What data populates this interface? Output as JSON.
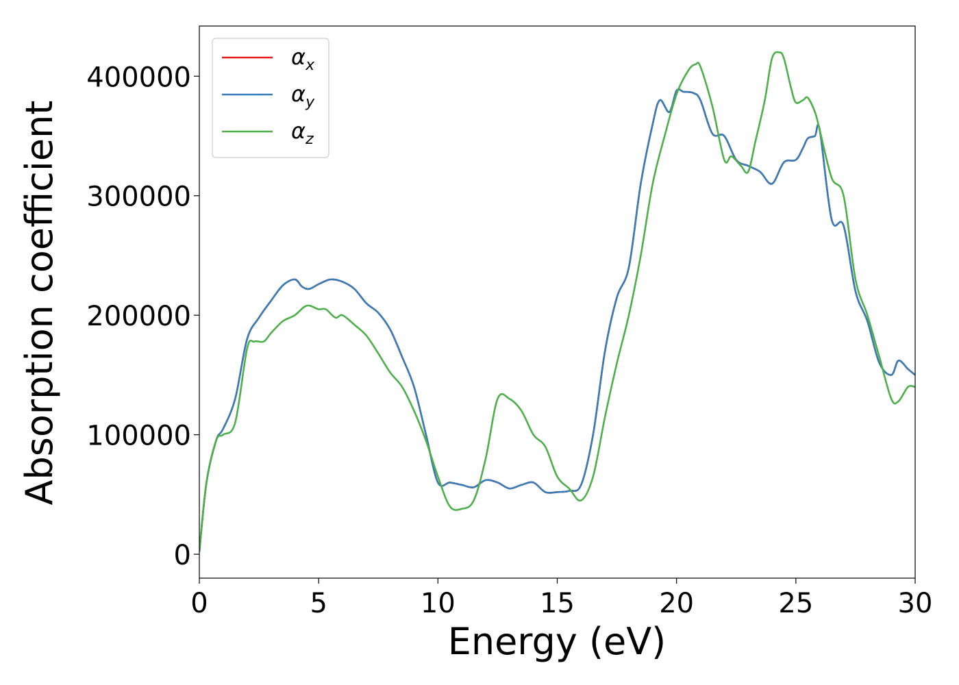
{
  "chart_data": {
    "type": "line",
    "xlabel": "Energy (eV)",
    "ylabel": "Absorption coefficient",
    "xlim": [
      0,
      30
    ],
    "ylim": [
      -20000,
      442000
    ],
    "xticks": [
      0,
      5,
      10,
      15,
      20,
      25,
      30
    ],
    "yticks": [
      0,
      100000,
      200000,
      300000,
      400000
    ],
    "grid": false,
    "legend_position": "top-left",
    "series": [
      {
        "name": "α_x",
        "symbol": "α",
        "subscript": "x",
        "color": "#e41a1c",
        "x": [
          0,
          0.3,
          0.7,
          1.0,
          1.5,
          2.0,
          2.5,
          3.0,
          3.5,
          4.0,
          4.3,
          4.6,
          5.0,
          5.5,
          6.0,
          6.5,
          7.0,
          7.5,
          8.0,
          8.5,
          9.0,
          9.5,
          10.0,
          10.5,
          11.0,
          11.5,
          12.0,
          12.5,
          13.0,
          13.5,
          14.0,
          14.5,
          15.0,
          15.5,
          16.0,
          16.5,
          17.0,
          17.5,
          18.0,
          18.5,
          19.0,
          19.3,
          19.7,
          20.0,
          20.3,
          20.7,
          21.0,
          21.5,
          22.0,
          22.5,
          23.0,
          23.5,
          24.0,
          24.5,
          25.0,
          25.3,
          25.5,
          25.8,
          26.0,
          26.5,
          27.0,
          27.5,
          28.0,
          28.5,
          29.0,
          29.3,
          29.7,
          30.0
        ],
        "y": [
          2000,
          60000,
          95000,
          105000,
          130000,
          180000,
          198000,
          212000,
          225000,
          230000,
          224000,
          222000,
          226000,
          230000,
          228000,
          222000,
          210000,
          202000,
          188000,
          165000,
          140000,
          100000,
          60000,
          60000,
          58000,
          56000,
          62000,
          60000,
          55000,
          58000,
          60000,
          52000,
          52000,
          53000,
          58000,
          100000,
          170000,
          215000,
          240000,
          310000,
          360000,
          380000,
          370000,
          388000,
          387000,
          386000,
          380000,
          352000,
          350000,
          330000,
          325000,
          320000,
          310000,
          328000,
          330000,
          340000,
          348000,
          350000,
          355000,
          280000,
          275000,
          220000,
          195000,
          160000,
          150000,
          162000,
          155000,
          150000
        ]
      },
      {
        "name": "α_y",
        "symbol": "α",
        "subscript": "y",
        "color": "#377eb8",
        "x": [
          0,
          0.3,
          0.7,
          1.0,
          1.5,
          2.0,
          2.5,
          3.0,
          3.5,
          4.0,
          4.3,
          4.6,
          5.0,
          5.5,
          6.0,
          6.5,
          7.0,
          7.5,
          8.0,
          8.5,
          9.0,
          9.5,
          10.0,
          10.5,
          11.0,
          11.5,
          12.0,
          12.5,
          13.0,
          13.5,
          14.0,
          14.5,
          15.0,
          15.5,
          16.0,
          16.5,
          17.0,
          17.5,
          18.0,
          18.5,
          19.0,
          19.3,
          19.7,
          20.0,
          20.3,
          20.7,
          21.0,
          21.5,
          22.0,
          22.5,
          23.0,
          23.5,
          24.0,
          24.5,
          25.0,
          25.3,
          25.5,
          25.8,
          26.0,
          26.5,
          27.0,
          27.5,
          28.0,
          28.5,
          29.0,
          29.3,
          29.7,
          30.0
        ],
        "y": [
          2000,
          60000,
          95000,
          105000,
          130000,
          180000,
          198000,
          212000,
          225000,
          230000,
          224000,
          222000,
          226000,
          230000,
          228000,
          222000,
          210000,
          202000,
          188000,
          165000,
          140000,
          100000,
          60000,
          60000,
          58000,
          56000,
          62000,
          60000,
          55000,
          58000,
          60000,
          52000,
          52000,
          53000,
          58000,
          100000,
          170000,
          215000,
          240000,
          310000,
          360000,
          380000,
          370000,
          388000,
          387000,
          386000,
          380000,
          352000,
          350000,
          330000,
          325000,
          320000,
          310000,
          328000,
          330000,
          340000,
          348000,
          350000,
          355000,
          280000,
          275000,
          220000,
          195000,
          160000,
          150000,
          162000,
          155000,
          150000
        ]
      },
      {
        "name": "α_z",
        "symbol": "α",
        "subscript": "z",
        "color": "#4daf4a",
        "x": [
          0,
          0.3,
          0.7,
          1.0,
          1.5,
          2.0,
          2.3,
          2.7,
          3.0,
          3.5,
          4.0,
          4.5,
          5.0,
          5.3,
          5.7,
          6.0,
          6.5,
          7.0,
          7.5,
          8.0,
          8.5,
          9.0,
          9.5,
          10.0,
          10.5,
          11.0,
          11.5,
          12.0,
          12.5,
          13.0,
          13.5,
          14.0,
          14.5,
          15.0,
          15.5,
          16.0,
          16.5,
          17.0,
          17.5,
          18.0,
          18.5,
          19.0,
          19.5,
          20.0,
          20.5,
          20.8,
          21.0,
          21.5,
          22.0,
          22.3,
          22.7,
          23.0,
          23.3,
          23.7,
          24.0,
          24.3,
          24.5,
          24.8,
          25.0,
          25.3,
          25.5,
          25.8,
          26.0,
          26.5,
          27.0,
          27.5,
          28.0,
          28.5,
          29.0,
          29.3,
          29.7,
          30.0
        ],
        "y": [
          2000,
          60000,
          95000,
          100000,
          110000,
          172000,
          178000,
          178000,
          185000,
          195000,
          200000,
          208000,
          205000,
          205000,
          198000,
          200000,
          192000,
          183000,
          168000,
          152000,
          140000,
          120000,
          95000,
          65000,
          40000,
          38000,
          45000,
          80000,
          130000,
          130000,
          120000,
          100000,
          90000,
          65000,
          55000,
          45000,
          65000,
          115000,
          160000,
          200000,
          250000,
          310000,
          350000,
          385000,
          405000,
          410000,
          408000,
          375000,
          330000,
          333000,
          325000,
          320000,
          345000,
          380000,
          415000,
          420000,
          415000,
          390000,
          378000,
          380000,
          382000,
          370000,
          355000,
          315000,
          300000,
          230000,
          200000,
          165000,
          130000,
          128000,
          140000,
          140000
        ]
      }
    ]
  }
}
